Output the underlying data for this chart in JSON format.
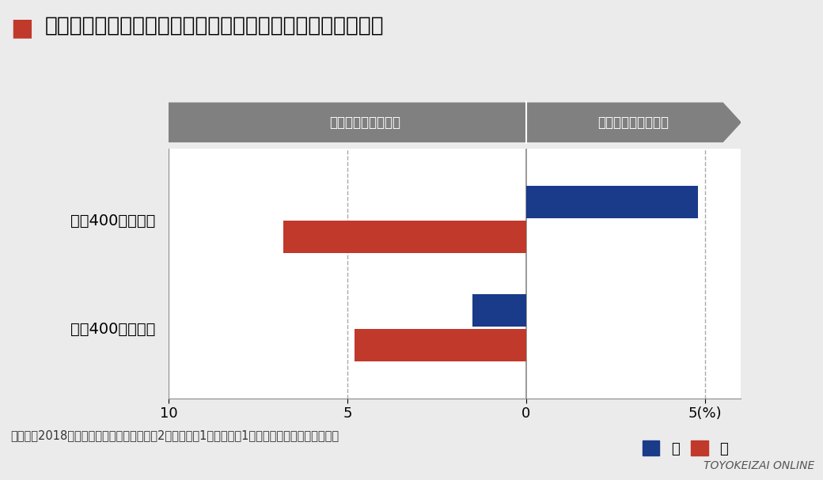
{
  "title": "「恋愛に能動的な男女」を年収別に見た場合の未既婚者の差",
  "title_square_color": "#c0392b",
  "categories": [
    "年収400万円未満",
    "年収400万円以上"
  ],
  "male_values": [
    4.8,
    -1.5
  ],
  "female_values": [
    -6.8,
    -4.8
  ],
  "male_color": "#1a3a8a",
  "female_color": "#c0392b",
  "xlim": [
    -10,
    6
  ],
  "xticks": [
    -10,
    -5,
    0,
    5
  ],
  "xtick_labels": [
    "10",
    "5",
    "0",
    "5(%)"
  ],
  "arrow_left_label": "既婚者のほうが多い",
  "arrow_right_label": "未婚者のほうが多い",
  "arrow_color": "#808080",
  "footnote": "（出所）2018年ソロもんラボ調査　（全国2万人：未婚1万人／既婚1万人対象）より荒川和久作成",
  "watermark": "TOYOKEIZAI ONLINE",
  "bg_color": "#ebebeb",
  "plot_bg_color": "#ffffff",
  "bottom_bar_color": "#888888",
  "dashed_line_color": "#aaaaaa",
  "legend_male": "男",
  "legend_female": "女",
  "bar_height": 0.3
}
